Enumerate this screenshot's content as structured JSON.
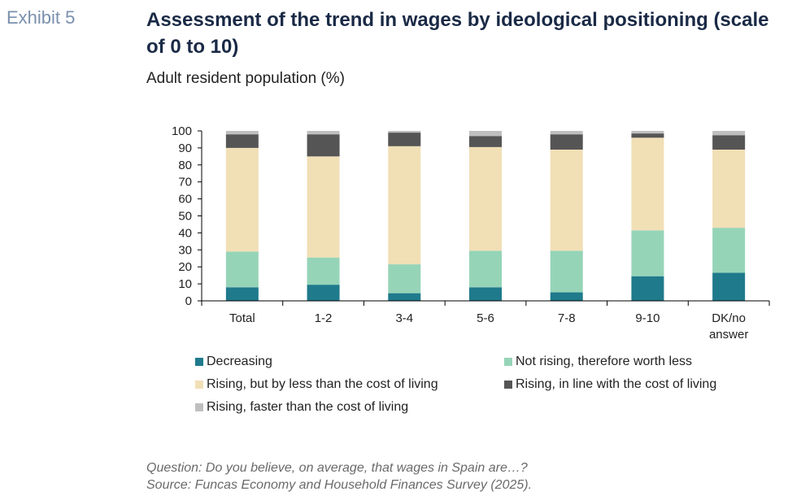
{
  "header": {
    "exhibit": "Exhibit 5",
    "title": "Assessment of the trend in wages by ideological positioning (scale of 0 to 10)",
    "subtitle": "Adult resident population (%)"
  },
  "footnote": {
    "question": "Question: Do you believe, on average, that wages in Spain are…?",
    "source": "Source: Funcas Economy and Household Finances Survey (2025)."
  },
  "chart_data": {
    "type": "bar",
    "stacked": true,
    "categories": [
      [
        "Total"
      ],
      [
        "1-2"
      ],
      [
        "3-4"
      ],
      [
        "5-6"
      ],
      [
        "7-8"
      ],
      [
        "9-10"
      ],
      [
        "DK/no",
        "answer"
      ]
    ],
    "ylim": [
      0,
      100
    ],
    "yticks": [
      0,
      10,
      20,
      30,
      40,
      50,
      60,
      70,
      80,
      90,
      100
    ],
    "grid": false,
    "legend_position": "bottom",
    "series": [
      {
        "name": "Decreasing",
        "color": "#1f7a8c",
        "values": [
          8,
          9.5,
          4.5,
          8,
          5,
          14.5,
          16.5
        ]
      },
      {
        "name": "Not rising, therefore worth less",
        "color": "#96d4b8",
        "values": [
          21,
          16,
          17,
          21.5,
          24.5,
          27,
          26.5
        ]
      },
      {
        "name": "Rising, but by less than the cost of living",
        "color": "#f1dfb6",
        "values": [
          61,
          59.5,
          69.5,
          61,
          59.5,
          54.5,
          46
        ]
      },
      {
        "name": "Rising, in line with the cost of living",
        "color": "#555555",
        "values": [
          8,
          13,
          8,
          6.5,
          9,
          2.5,
          8.5
        ]
      },
      {
        "name": "Rising, faster than the cost of living",
        "color": "#bfbfbf",
        "values": [
          2,
          2,
          1,
          3,
          2,
          1.5,
          2.5
        ]
      }
    ]
  }
}
